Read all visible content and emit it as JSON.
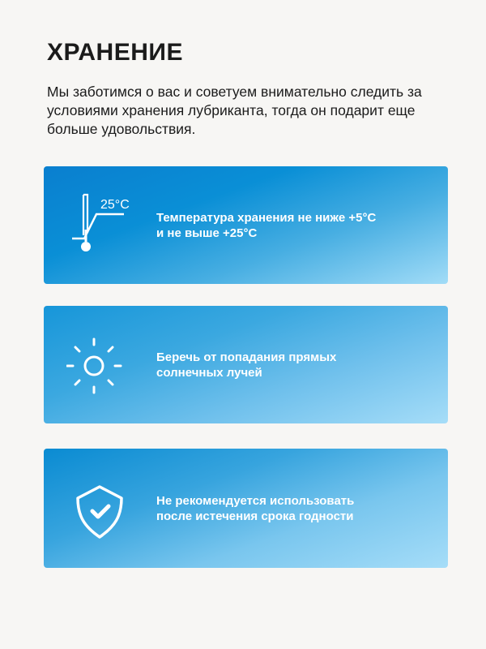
{
  "title": "ХРАНЕНИЕ",
  "intro": "Мы заботимся о вас и советуем внимательно следить за условиями хранения лубриканта, тогда он подарит еще больше удовольствия.",
  "cards": [
    {
      "icon": "thermometer-icon",
      "icon_label": "25°C",
      "line1": "Температура хранения не ниже +5°C",
      "line2": "и не выше +25°C"
    },
    {
      "icon": "sun-icon",
      "line1": "Беречь от попадания прямых",
      "line2": "солнечных лучей"
    },
    {
      "icon": "shield-check-icon",
      "line1": "Не рекомендуется использовать",
      "line2": "после истечения срока годности"
    }
  ],
  "colors": {
    "background": "#f7f6f4",
    "card_dark": "#0a7fcf",
    "card_light": "#a6ddf8",
    "text": "#1b1b1b"
  }
}
